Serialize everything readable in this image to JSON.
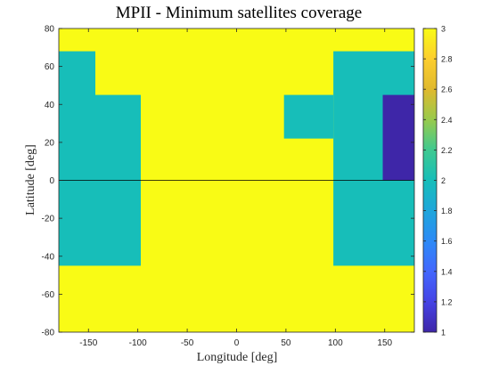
{
  "chart_data": {
    "type": "heatmap",
    "title": "MPII - Minimum satellites coverage",
    "xlabel": "Longitude [deg]",
    "ylabel": "Latitude [deg]",
    "xlim": [
      -180,
      180
    ],
    "ylim": [
      -80,
      80
    ],
    "x_ticks": [
      -150,
      -100,
      -50,
      0,
      50,
      100,
      150
    ],
    "y_ticks": [
      -80,
      -60,
      -40,
      -20,
      0,
      20,
      40,
      60,
      80
    ],
    "colorbar": {
      "colormap": "parula",
      "range": [
        1,
        3
      ],
      "ticks": [
        1,
        1.2,
        1.4,
        1.6,
        1.8,
        2,
        2.2,
        2.4,
        2.6,
        2.8,
        3
      ],
      "colors": {
        "1": "#3e26a8",
        "2": "#17beb9",
        "3": "#f9fb15"
      }
    },
    "background_value": 3,
    "regions": [
      {
        "lon": [
          -180,
          -143
        ],
        "lat": [
          -45,
          68
        ],
        "value": 2
      },
      {
        "lon": [
          -143,
          -97
        ],
        "lat": [
          -45,
          45
        ],
        "value": 2
      },
      {
        "lon": [
          48,
          98
        ],
        "lat": [
          22,
          45
        ],
        "value": 2
      },
      {
        "lon": [
          98,
          180
        ],
        "lat": [
          -45,
          68
        ],
        "value": 2
      },
      {
        "lon": [
          148,
          180
        ],
        "lat": [
          0,
          45
        ],
        "value": 1
      }
    ],
    "reference_lines": [
      {
        "lat": 0
      }
    ]
  }
}
